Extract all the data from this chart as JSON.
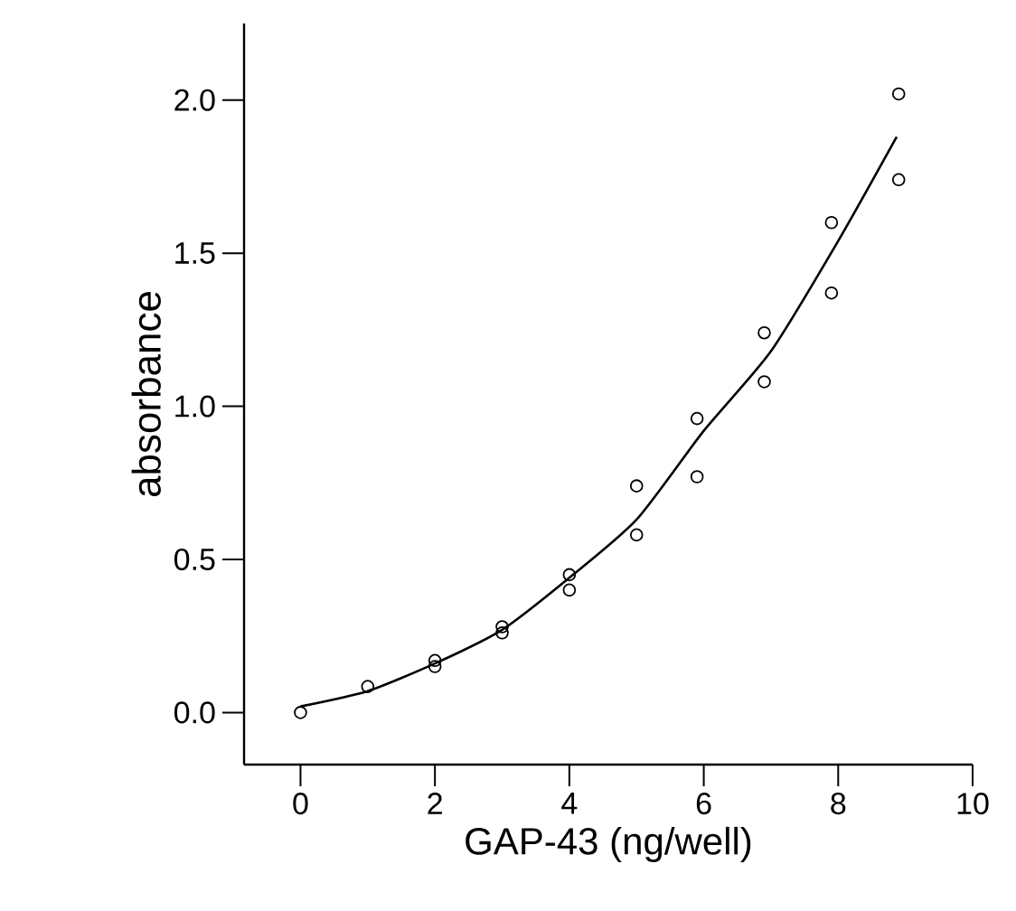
{
  "chart_data": {
    "type": "scatter",
    "xlabel": "GAP-43 (ng/well)",
    "ylabel": "absorbance",
    "xlim": [
      -0.84,
      10
    ],
    "ylim": [
      -0.17,
      2.25
    ],
    "xticks": [
      0,
      2,
      4,
      6,
      8,
      10
    ],
    "yticks": [
      {
        "value": 0,
        "label": "0.0"
      },
      {
        "value": 0.5,
        "label": "0.5"
      },
      {
        "value": 1,
        "label": "1.0"
      },
      {
        "value": 1.5,
        "label": "1.5"
      },
      {
        "value": 2,
        "label": "2.0"
      }
    ],
    "grid": false,
    "series": [
      {
        "marker": "circle",
        "color": "#000000",
        "x": [
          0,
          1,
          2,
          2,
          3,
          3,
          4,
          4,
          5,
          5,
          5.9,
          5.9,
          6.9,
          6.9,
          7.9,
          7.9,
          8.9,
          8.9
        ],
        "values": [
          0.0,
          0.085,
          0.17,
          0.15,
          0.28,
          0.26,
          0.45,
          0.4,
          0.74,
          0.58,
          0.96,
          0.77,
          1.24,
          1.08,
          1.6,
          1.37,
          2.02,
          1.74
        ]
      },
      {
        "type": "line",
        "marker": "none",
        "line_style": "solid",
        "color": "#000000",
        "x": [
          0,
          1,
          2,
          3,
          4,
          5,
          6,
          7,
          8,
          8.87
        ],
        "values": [
          0.02,
          0.07,
          0.16,
          0.27,
          0.44,
          0.63,
          0.92,
          1.18,
          1.54,
          1.88
        ]
      }
    ]
  }
}
